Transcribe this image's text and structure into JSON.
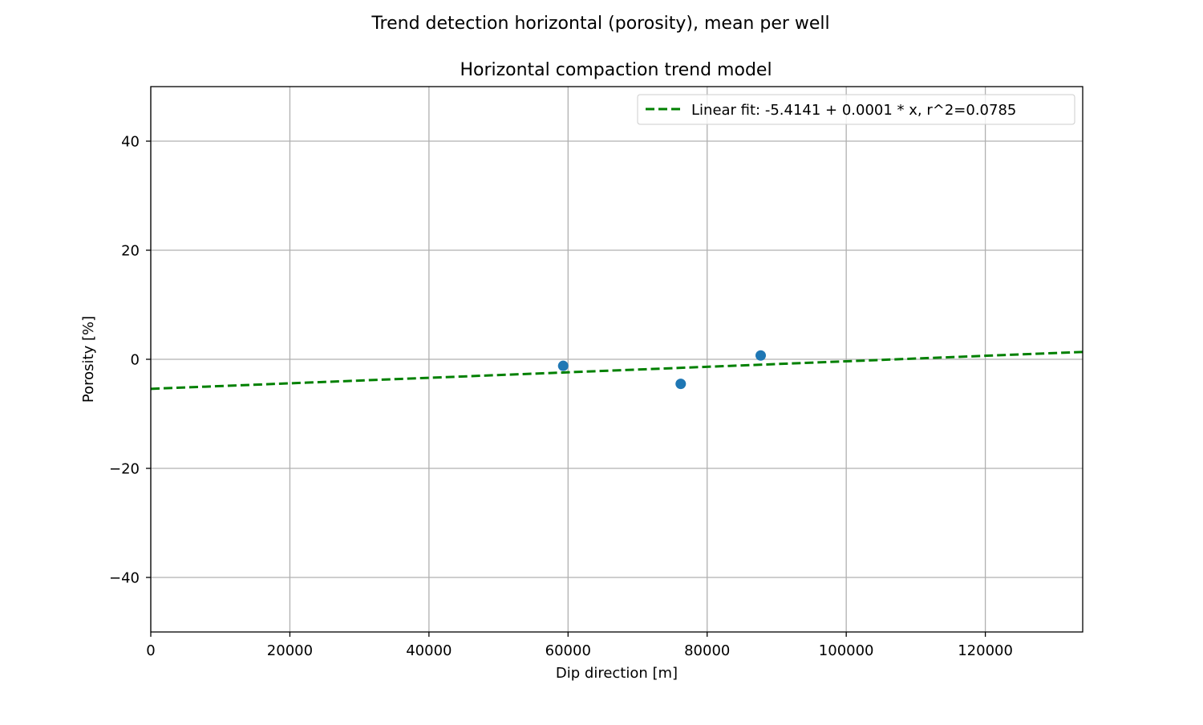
{
  "figure": {
    "suptitle": "Trend detection horizontal (porosity), mean per well"
  },
  "chart_data": {
    "type": "scatter",
    "title": "Horizontal compaction trend model",
    "xlabel": "Dip direction [m]",
    "ylabel": "Porosity [%]",
    "xlim": [
      0,
      134000
    ],
    "ylim": [
      -50,
      50
    ],
    "x_ticks": [
      0,
      20000,
      40000,
      60000,
      80000,
      100000,
      120000
    ],
    "x_tick_labels": [
      "0",
      "20000",
      "40000",
      "60000",
      "80000",
      "100000",
      "120000"
    ],
    "y_ticks": [
      -40,
      -20,
      0,
      20,
      40
    ],
    "y_tick_labels": [
      "−40",
      "−20",
      "0",
      "20",
      "40"
    ],
    "grid": true,
    "legend_position": "top-right",
    "series": [
      {
        "kind": "scatter",
        "color": "#1f77b4",
        "x": [
          59300,
          76200,
          87700
        ],
        "y": [
          -1.2,
          -4.5,
          0.7
        ]
      },
      {
        "kind": "line",
        "name": "Linear fit: -5.4141 + 0.0001 * x, r^2=0.0785",
        "color": "#008000",
        "dashed": true,
        "x": [
          0,
          134000
        ],
        "y": [
          -5.4141,
          1.35
        ]
      }
    ]
  }
}
